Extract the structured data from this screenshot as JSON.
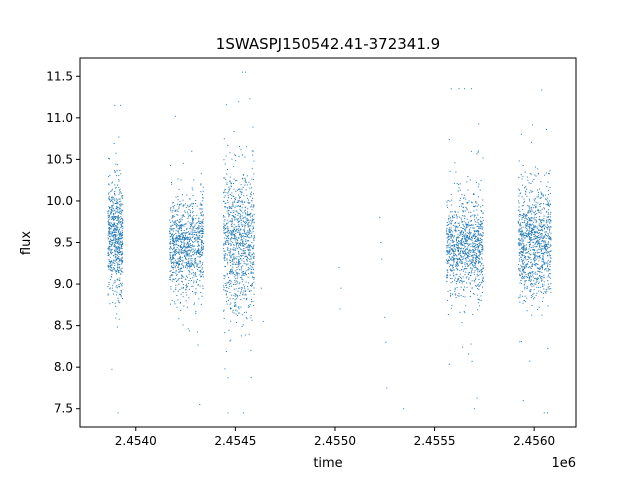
{
  "chart_data": {
    "type": "scatter",
    "title": "1SWASPJ150542.41-372341.9",
    "xlabel": "time",
    "ylabel": "flux",
    "x_offset_label": "1e6",
    "xlim": [
      2453720,
      2456210
    ],
    "ylim": [
      7.28,
      11.72
    ],
    "x_ticks": [
      {
        "value": 2454000,
        "label": "2.4540"
      },
      {
        "value": 2454500,
        "label": "2.4545"
      },
      {
        "value": 2455000,
        "label": "2.4550"
      },
      {
        "value": 2455500,
        "label": "2.4555"
      },
      {
        "value": 2456000,
        "label": "2.4560"
      }
    ],
    "y_ticks": [
      {
        "value": 7.5,
        "label": "7.5"
      },
      {
        "value": 8.0,
        "label": "8.0"
      },
      {
        "value": 8.5,
        "label": "8.5"
      },
      {
        "value": 9.0,
        "label": "9.0"
      },
      {
        "value": 9.5,
        "label": "9.5"
      },
      {
        "value": 10.0,
        "label": "10.0"
      },
      {
        "value": 10.5,
        "label": "10.5"
      },
      {
        "value": 11.0,
        "label": "11.0"
      },
      {
        "value": 11.5,
        "label": "11.5"
      }
    ],
    "grid": false,
    "legend": "none",
    "marker_color": "#1f77b4",
    "series": [
      {
        "seasons": [
          {
            "x_start": 2453860,
            "x_end": 2453935,
            "center": 9.55,
            "spread": 0.32,
            "min": 7.45,
            "max": 11.15,
            "n": 650
          },
          {
            "x_start": 2454170,
            "x_end": 2454340,
            "center": 9.45,
            "spread": 0.3,
            "min": 7.55,
            "max": 11.35,
            "n": 950
          },
          {
            "x_start": 2454440,
            "x_end": 2454595,
            "center": 9.5,
            "spread": 0.42,
            "min": 7.45,
            "max": 11.55,
            "n": 950
          },
          {
            "x_start": 2455560,
            "x_end": 2455745,
            "center": 9.45,
            "spread": 0.28,
            "min": 7.5,
            "max": 11.35,
            "n": 1000
          },
          {
            "x_start": 2455920,
            "x_end": 2456085,
            "center": 9.5,
            "spread": 0.33,
            "min": 7.45,
            "max": 11.55,
            "n": 1000
          }
        ],
        "points": [
          {
            "x": 2454630,
            "y": 8.95
          },
          {
            "x": 2454640,
            "y": 8.55
          },
          {
            "x": 2455020,
            "y": 9.2
          },
          {
            "x": 2455030,
            "y": 8.95
          },
          {
            "x": 2455025,
            "y": 8.7
          },
          {
            "x": 2455225,
            "y": 9.8
          },
          {
            "x": 2455230,
            "y": 9.5
          },
          {
            "x": 2455235,
            "y": 9.3
          },
          {
            "x": 2455250,
            "y": 8.6
          },
          {
            "x": 2455255,
            "y": 8.3
          },
          {
            "x": 2455260,
            "y": 7.75
          },
          {
            "x": 2455345,
            "y": 7.5
          }
        ]
      }
    ]
  }
}
